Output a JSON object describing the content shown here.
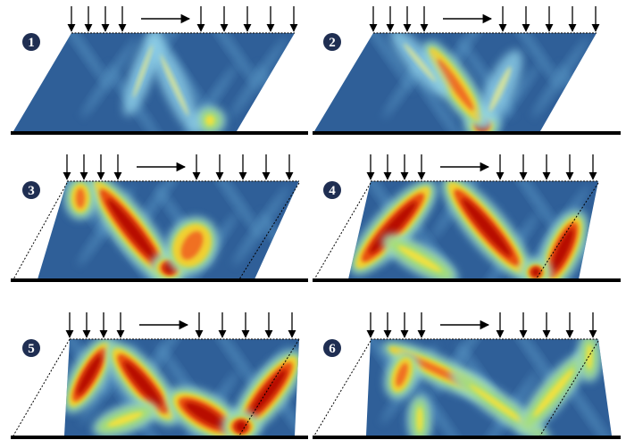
{
  "panels": [
    {
      "label": "1"
    },
    {
      "label": "2"
    },
    {
      "label": "3"
    },
    {
      "label": "4"
    },
    {
      "label": "5"
    },
    {
      "label": "6"
    }
  ]
}
